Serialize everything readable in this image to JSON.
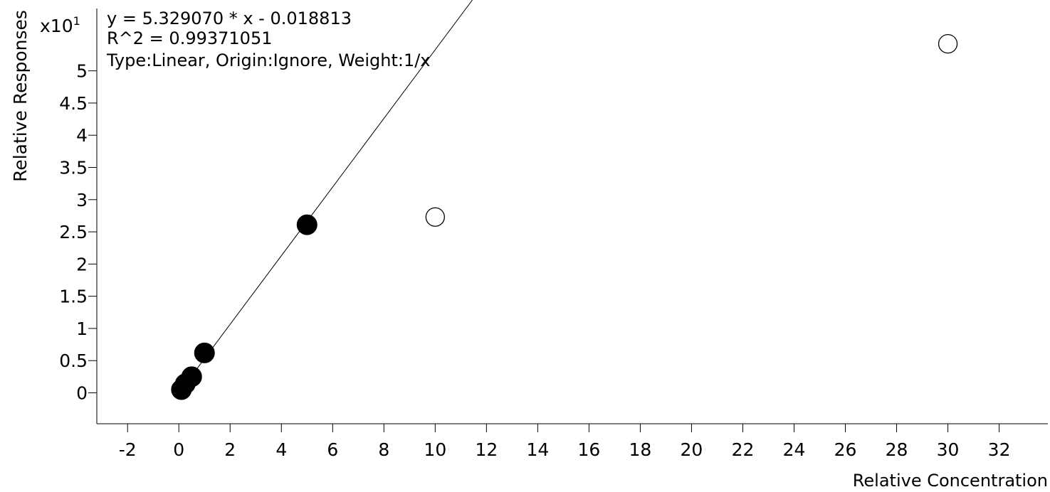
{
  "chart_data": {
    "type": "scatter",
    "xlabel": "Relative Concentration",
    "ylabel": "Relative Responses",
    "y_multiplier_base": "x10",
    "y_multiplier_exp": "1",
    "annotations": [
      "y = 5.329070 * x  - 0.018813",
      "R^2 = 0.99371051",
      "Type:Linear, Origin:Ignore, Weight:1/x"
    ],
    "xlim": [
      -3.2,
      33.9
    ],
    "ylim": [
      -0.48,
      6.1
    ],
    "xticks": [
      -2,
      0,
      2,
      4,
      6,
      8,
      10,
      12,
      14,
      16,
      18,
      20,
      22,
      24,
      26,
      28,
      30,
      32
    ],
    "xtick_labels": [
      "-2",
      "0",
      "2",
      "4",
      "6",
      "8",
      "10",
      "12",
      "14",
      "16",
      "18",
      "20",
      "22",
      "24",
      "26",
      "28",
      "30",
      "32"
    ],
    "yticks": [
      0,
      0.5,
      1,
      1.5,
      2,
      2.5,
      3,
      3.5,
      4,
      4.5,
      5
    ],
    "ytick_labels": [
      "0",
      "0.5",
      "1",
      "1.5",
      "2",
      "2.5",
      "3",
      "3.5",
      "4",
      "4.5",
      "5"
    ],
    "fit": {
      "slope": 0.532907,
      "intercept": -0.0018813
    },
    "series": [
      {
        "points": [
          {
            "x": 0.1,
            "y": 0.05,
            "included": true
          },
          {
            "x": 0.25,
            "y": 0.14,
            "included": true
          },
          {
            "x": 0.5,
            "y": 0.25,
            "included": true
          },
          {
            "x": 1.0,
            "y": 0.62,
            "included": true
          },
          {
            "x": 5.0,
            "y": 2.61,
            "included": true
          },
          {
            "x": 10.0,
            "y": 2.73,
            "included": false
          },
          {
            "x": 30.0,
            "y": 5.42,
            "included": false
          }
        ]
      }
    ],
    "grid": false
  }
}
